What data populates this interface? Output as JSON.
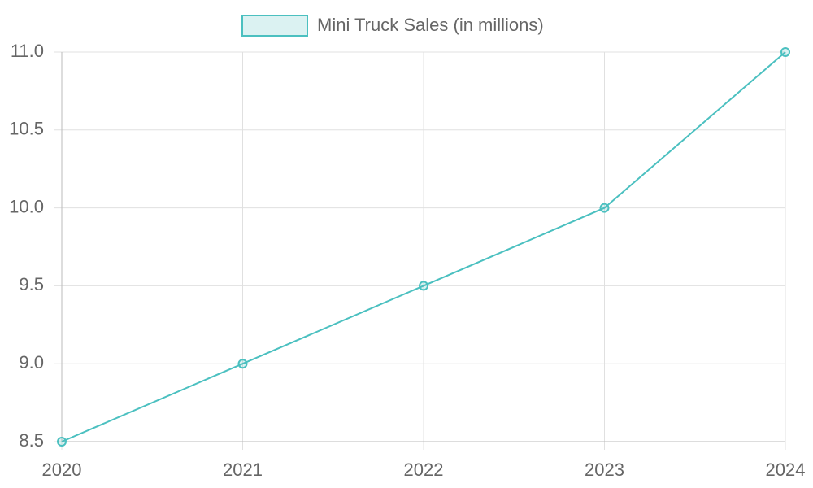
{
  "chart_data": {
    "type": "line",
    "categories": [
      "2020",
      "2021",
      "2022",
      "2023",
      "2024"
    ],
    "series": [
      {
        "name": "Mini Truck Sales (in millions)",
        "color": "#4bc0c0",
        "values": [
          8.5,
          9,
          9.5,
          10,
          11
        ]
      }
    ],
    "ylim": [
      8.5,
      11
    ],
    "yticks": [
      8.5,
      {
        "value": 9,
        "label": "9.0"
      },
      9.5,
      {
        "value": 10,
        "label": "10.0"
      },
      10.5,
      {
        "value": 11,
        "label": "11.0"
      }
    ],
    "grid": true,
    "legend": "top"
  }
}
